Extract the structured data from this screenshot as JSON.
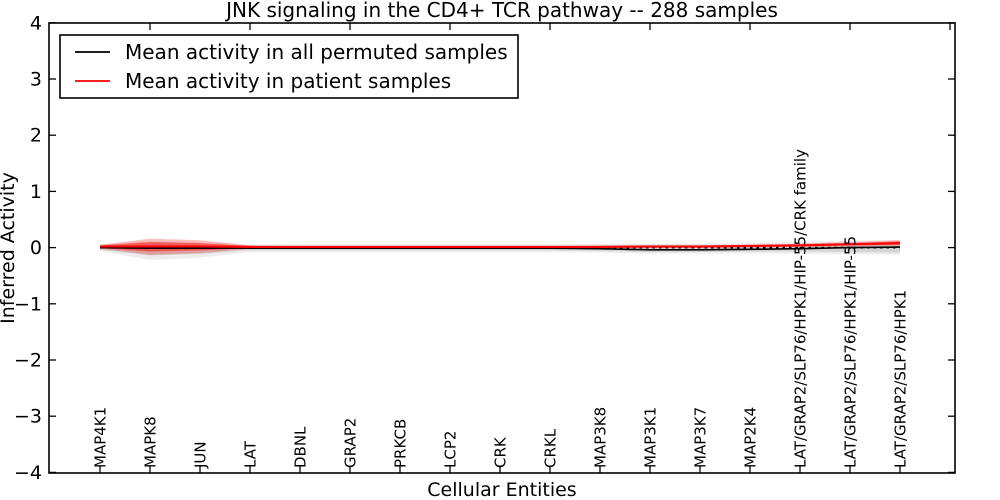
{
  "chart_data": {
    "type": "line",
    "title": "JNK signaling in the CD4+ TCR pathway -- 288 samples",
    "xlabel": "Cellular Entities",
    "ylabel": "Inferred Activity",
    "ylim": [
      -4,
      4
    ],
    "yticks": [
      4,
      3,
      2,
      1,
      0,
      -1,
      -2,
      -3,
      -4
    ],
    "grid": false,
    "legend_position": "upper left",
    "categories": [
      "MAP4K1",
      "MAPK8",
      "JUN",
      "LAT",
      "DBNL",
      "GRAP2",
      "PRKCB",
      "LCP2",
      "CRK",
      "CRKL",
      "MAP3K8",
      "MAP3K1",
      "MAP3K7",
      "MAP2K4",
      "LAT/GRAP2/SLP76/HPK1/HIP-55/CRK family",
      "LAT/GRAP2/SLP76/HPK1/HIP-55",
      "LAT/GRAP2/SLP76/HPK1"
    ],
    "series": [
      {
        "name": "Mean activity in all permuted samples",
        "color": "#000000",
        "style": "solid",
        "in_legend": true,
        "values": [
          0.0,
          -0.01,
          -0.01,
          -0.01,
          -0.01,
          -0.01,
          -0.01,
          -0.01,
          -0.01,
          -0.01,
          -0.02,
          -0.04,
          -0.04,
          -0.03,
          -0.02,
          0.0,
          0.01
        ]
      },
      {
        "name": "Mean activity in patient samples",
        "color": "#ff0000",
        "style": "solid",
        "in_legend": true,
        "values": [
          0.02,
          0.02,
          0.02,
          0.01,
          0.01,
          0.01,
          0.01,
          0.01,
          0.01,
          0.01,
          0.01,
          0.02,
          0.02,
          0.03,
          0.04,
          0.06,
          0.08
        ]
      },
      {
        "name": "zero reference",
        "color": "#000000",
        "style": "dotted",
        "in_legend": false,
        "values": [
          0,
          0,
          0,
          0,
          0,
          0,
          0,
          0,
          0,
          0,
          0,
          0,
          0,
          0,
          0,
          0,
          0
        ]
      }
    ],
    "bands": [
      {
        "name": "permuted samples spread (outer)",
        "color": "#000000",
        "opacity": 0.07,
        "upper": [
          0.05,
          0.12,
          0.1,
          0.06,
          0.06,
          0.06,
          0.06,
          0.06,
          0.06,
          0.06,
          0.07,
          0.07,
          0.07,
          0.08,
          0.1,
          0.12,
          0.14
        ],
        "lower": [
          -0.06,
          -0.22,
          -0.18,
          -0.08,
          -0.08,
          -0.08,
          -0.08,
          -0.08,
          -0.08,
          -0.08,
          -0.09,
          -0.11,
          -0.11,
          -0.1,
          -0.11,
          -0.12,
          -0.13
        ]
      },
      {
        "name": "permuted samples spread (inner)",
        "color": "#000000",
        "opacity": 0.1,
        "upper": [
          0.03,
          0.07,
          0.06,
          0.04,
          0.04,
          0.04,
          0.04,
          0.04,
          0.04,
          0.04,
          0.04,
          0.05,
          0.05,
          0.05,
          0.06,
          0.07,
          0.09
        ],
        "lower": [
          -0.04,
          -0.14,
          -0.11,
          -0.05,
          -0.05,
          -0.05,
          -0.05,
          -0.05,
          -0.05,
          -0.05,
          -0.06,
          -0.08,
          -0.08,
          -0.07,
          -0.07,
          -0.08,
          -0.09
        ]
      },
      {
        "name": "patient samples spread (outer)",
        "color": "#ff0000",
        "opacity": 0.25,
        "upper": [
          0.05,
          0.16,
          0.13,
          0.04,
          0.03,
          0.03,
          0.03,
          0.03,
          0.03,
          0.03,
          0.04,
          0.04,
          0.04,
          0.05,
          0.07,
          0.1,
          0.13
        ],
        "lower": [
          -0.02,
          -0.13,
          -0.1,
          -0.02,
          -0.02,
          -0.02,
          -0.02,
          -0.02,
          -0.02,
          -0.02,
          -0.01,
          -0.01,
          -0.01,
          0.0,
          0.01,
          0.02,
          0.03
        ]
      },
      {
        "name": "patient samples spread (inner)",
        "color": "#ff0000",
        "opacity": 0.45,
        "upper": [
          0.04,
          0.1,
          0.08,
          0.03,
          0.02,
          0.02,
          0.02,
          0.02,
          0.02,
          0.02,
          0.03,
          0.03,
          0.03,
          0.04,
          0.06,
          0.08,
          0.11
        ],
        "lower": [
          -0.01,
          -0.07,
          -0.05,
          -0.01,
          -0.01,
          -0.01,
          -0.01,
          -0.01,
          -0.01,
          -0.01,
          0.0,
          0.0,
          0.0,
          0.01,
          0.02,
          0.04,
          0.05
        ]
      }
    ]
  },
  "legend": {
    "entry1": "Mean activity in all permuted samples",
    "entry2": "Mean activity in patient samples"
  }
}
